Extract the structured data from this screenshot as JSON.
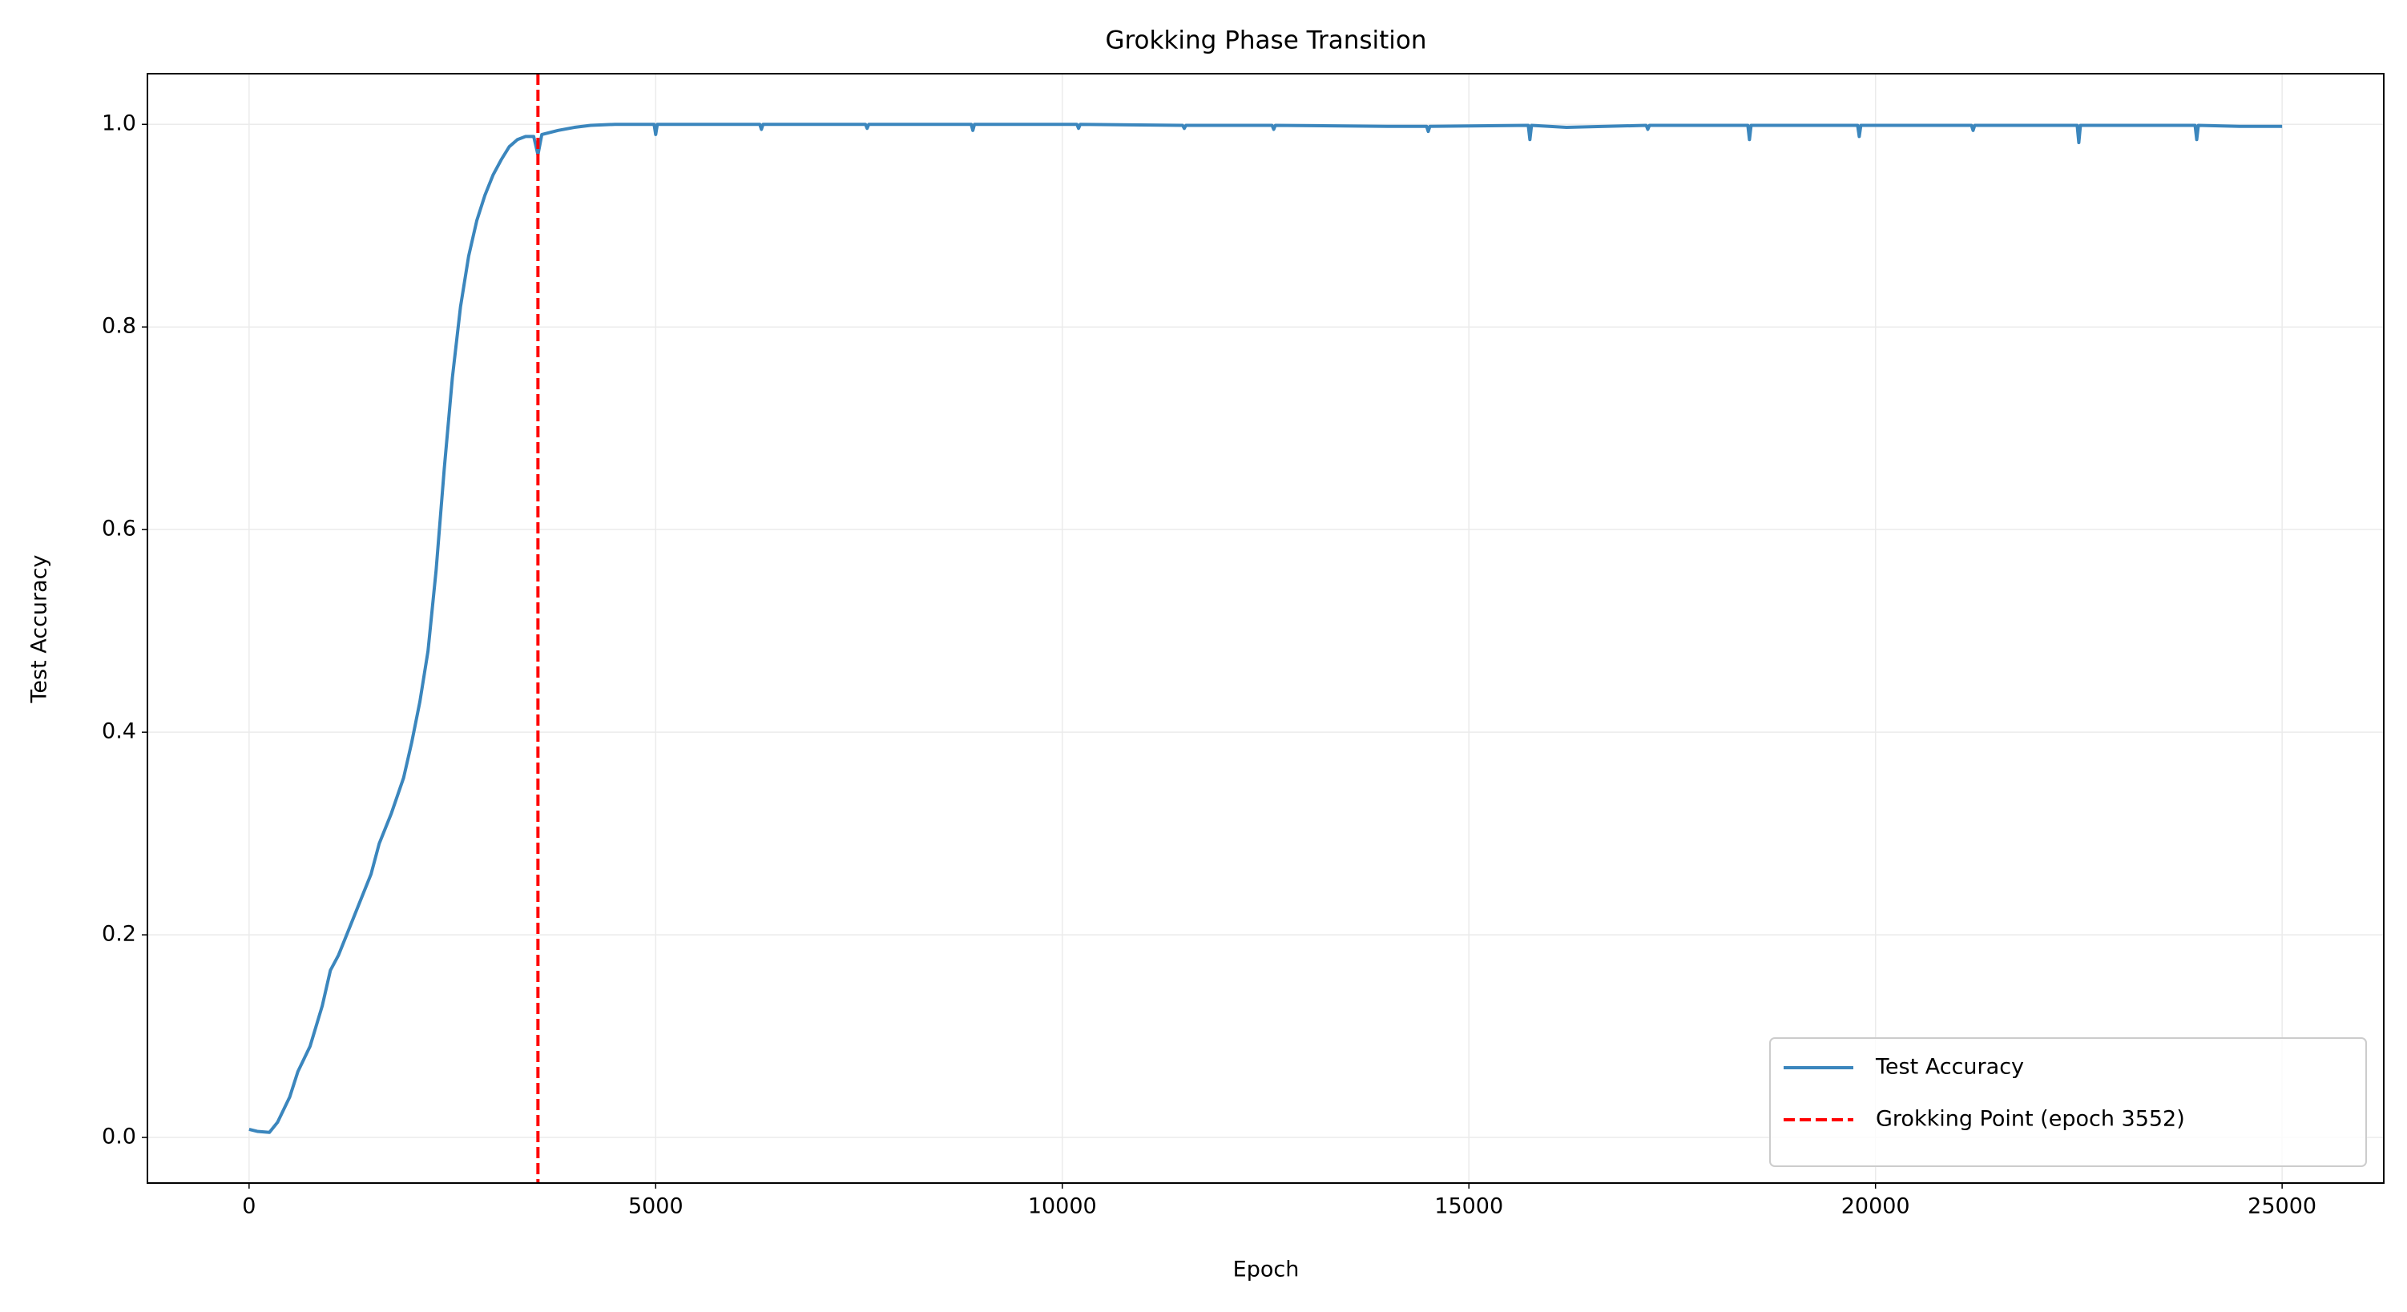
{
  "chart_data": {
    "type": "line",
    "title": "Grokking Phase Transition",
    "xlabel": "Epoch",
    "ylabel": "Test Accuracy",
    "x": [
      0,
      100,
      250,
      350,
      500,
      600,
      750,
      900,
      1000,
      1100,
      1250,
      1400,
      1500,
      1600,
      1750,
      1900,
      2000,
      2100,
      2200,
      2300,
      2400,
      2500,
      2600,
      2700,
      2800,
      2900,
      3000,
      3100,
      3200,
      3300,
      3400,
      3500,
      3552,
      3600,
      3800,
      4000,
      4200,
      4500,
      4980,
      5000,
      5020,
      6280,
      6300,
      6320,
      7580,
      7600,
      7620,
      8880,
      8900,
      8920,
      10180,
      10200,
      10220,
      11480,
      11500,
      11520,
      12580,
      12600,
      12620,
      14000,
      14480,
      14500,
      14520,
      15730,
      15750,
      15770,
      16200,
      17180,
      17200,
      17220,
      18430,
      18450,
      18470,
      19780,
      19800,
      19820,
      21180,
      21200,
      21220,
      22480,
      22500,
      22520,
      23930,
      23950,
      23970,
      24500,
      25000
    ],
    "series": [
      {
        "name": "Test Accuracy",
        "color": "#3b86bd",
        "values": [
          0.008,
          0.006,
          0.005,
          0.015,
          0.04,
          0.065,
          0.09,
          0.13,
          0.165,
          0.18,
          0.21,
          0.24,
          0.26,
          0.29,
          0.32,
          0.355,
          0.39,
          0.43,
          0.48,
          0.56,
          0.66,
          0.75,
          0.82,
          0.87,
          0.905,
          0.93,
          0.95,
          0.965,
          0.978,
          0.985,
          0.988,
          0.988,
          0.97,
          0.99,
          0.994,
          0.997,
          0.999,
          1.0,
          1.0,
          0.99,
          1.0,
          1.0,
          0.995,
          1.0,
          1.0,
          0.996,
          1.0,
          1.0,
          0.994,
          1.0,
          1.0,
          0.996,
          1.0,
          0.999,
          0.996,
          0.999,
          0.999,
          0.995,
          0.999,
          0.998,
          0.998,
          0.993,
          0.998,
          0.999,
          0.985,
          0.999,
          0.997,
          0.999,
          0.995,
          0.999,
          0.999,
          0.985,
          0.999,
          0.999,
          0.988,
          0.999,
          0.999,
          0.994,
          0.999,
          0.999,
          0.982,
          0.999,
          0.999,
          0.985,
          0.999,
          0.998,
          0.998
        ]
      }
    ],
    "vlines": [
      {
        "x": 3552,
        "name": "Grokking Point (epoch 3552)",
        "color": "#ff0000"
      }
    ],
    "xlim": [
      -1250,
      26250
    ],
    "xticks": [
      0,
      5000,
      10000,
      15000,
      20000,
      25000
    ],
    "ylim": [
      -0.045,
      1.05
    ],
    "yticks": [
      {
        "value": 0,
        "label": "0.0"
      },
      0.2,
      0.4,
      0.6,
      0.8,
      {
        "value": 1,
        "label": "1.0"
      }
    ],
    "grid": true,
    "legend": "lower right"
  }
}
